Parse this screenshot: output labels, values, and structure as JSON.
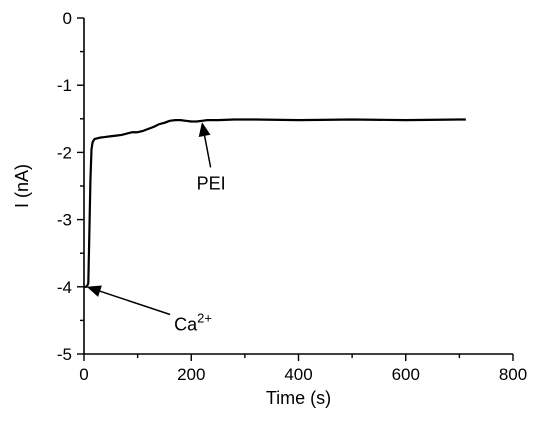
{
  "chart_data": {
    "type": "line",
    "xlabel": "Time (s)",
    "ylabel": "I (nA)",
    "xlim": [
      0,
      800
    ],
    "ylim": [
      -5,
      0
    ],
    "x_ticks": [
      0,
      200,
      400,
      600,
      800
    ],
    "y_ticks": [
      0,
      -1,
      -2,
      -3,
      -4,
      -5
    ],
    "x_tick_labels": [
      "0",
      "200",
      "400",
      "600",
      "800"
    ],
    "y_tick_labels": [
      "0",
      "-1",
      "-2",
      "-3",
      "-4",
      "-5"
    ],
    "grid": false,
    "series": [
      {
        "color": "#000000",
        "x": [
          0,
          5,
          8,
          10,
          12,
          14,
          16,
          18,
          20,
          25,
          30,
          40,
          50,
          60,
          70,
          80,
          90,
          100,
          110,
          120,
          130,
          140,
          150,
          160,
          170,
          180,
          190,
          200,
          210,
          220,
          230,
          250,
          280,
          320,
          400,
          500,
          600,
          700,
          712
        ],
        "y": [
          -4.0,
          -4.0,
          -3.95,
          -3.2,
          -2.4,
          -1.95,
          -1.85,
          -1.82,
          -1.8,
          -1.79,
          -1.78,
          -1.77,
          -1.76,
          -1.75,
          -1.74,
          -1.72,
          -1.7,
          -1.7,
          -1.68,
          -1.65,
          -1.62,
          -1.58,
          -1.56,
          -1.53,
          -1.52,
          -1.52,
          -1.53,
          -1.54,
          -1.54,
          -1.53,
          -1.52,
          -1.52,
          -1.51,
          -1.51,
          -1.52,
          -1.51,
          -1.52,
          -1.51,
          -1.51
        ]
      }
    ],
    "annotations": [
      {
        "text": "Ca",
        "superscript": "2+",
        "target_x": 5,
        "target_y": -4.0,
        "text_x": 168,
        "text_y": -4.65
      },
      {
        "text": "PEI",
        "target_x": 220,
        "target_y": -1.55,
        "text_x": 210,
        "text_y": -2.55
      }
    ]
  }
}
